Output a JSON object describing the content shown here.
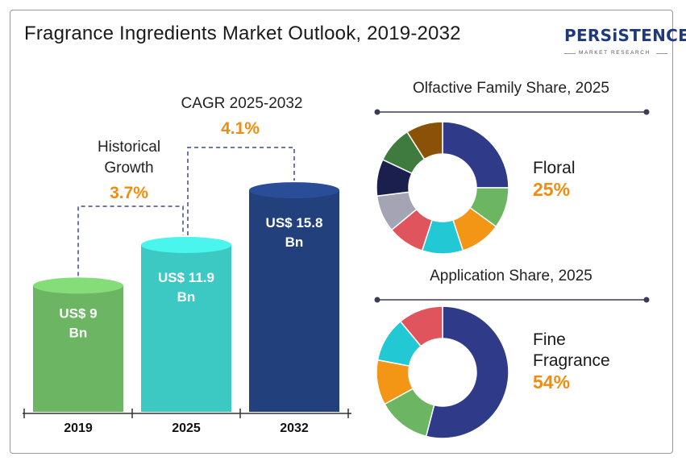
{
  "title": "Fragrance Ingredients Market Outlook, 2019-2032",
  "logo": {
    "word": "PERSiSTENCE",
    "sub": "MARKET RESEARCH"
  },
  "colors": {
    "accent": "#f28c0f",
    "navy": "#1f3a7a"
  },
  "chart_data": [
    {
      "type": "bar",
      "categories": [
        "2019",
        "2025",
        "2032"
      ],
      "values": [
        9,
        11.9,
        15.8
      ],
      "value_labels": [
        [
          "US$ 9",
          "Bn"
        ],
        [
          "US$ 11.9",
          "Bn"
        ],
        [
          "US$ 15.8",
          "Bn"
        ]
      ],
      "colors": [
        "#6cb563",
        "#3dc9c3",
        "#22407c"
      ],
      "annotations": [
        {
          "label": [
            "Historical",
            "Growth"
          ],
          "value": "3.7%",
          "from": "2019",
          "to": "2025"
        },
        {
          "label": [
            "CAGR 2025-2032"
          ],
          "value": "4.1%",
          "from": "2025",
          "to": "2032"
        }
      ]
    },
    {
      "type": "pie",
      "title": "Olfactive Family Share, 2025",
      "values": [
        25,
        10,
        10,
        10,
        9,
        9,
        9,
        9,
        9
      ],
      "colors": [
        "#2f3a88",
        "#6cb563",
        "#f39515",
        "#22c8d3",
        "#e0555d",
        "#a4a4b4",
        "#1b1f4e",
        "#3f7a3f",
        "#8a5206"
      ],
      "highlight": {
        "label": [
          "Floral"
        ],
        "value": "25%"
      }
    },
    {
      "type": "pie",
      "title": "Application Share, 2025",
      "values": [
        54,
        13,
        11,
        11,
        11
      ],
      "colors": [
        "#2f3a88",
        "#6cb563",
        "#f39515",
        "#22c8d3",
        "#e0555d"
      ],
      "highlight": {
        "label": [
          "Fine",
          "Fragrance"
        ],
        "value": "54%"
      }
    }
  ]
}
